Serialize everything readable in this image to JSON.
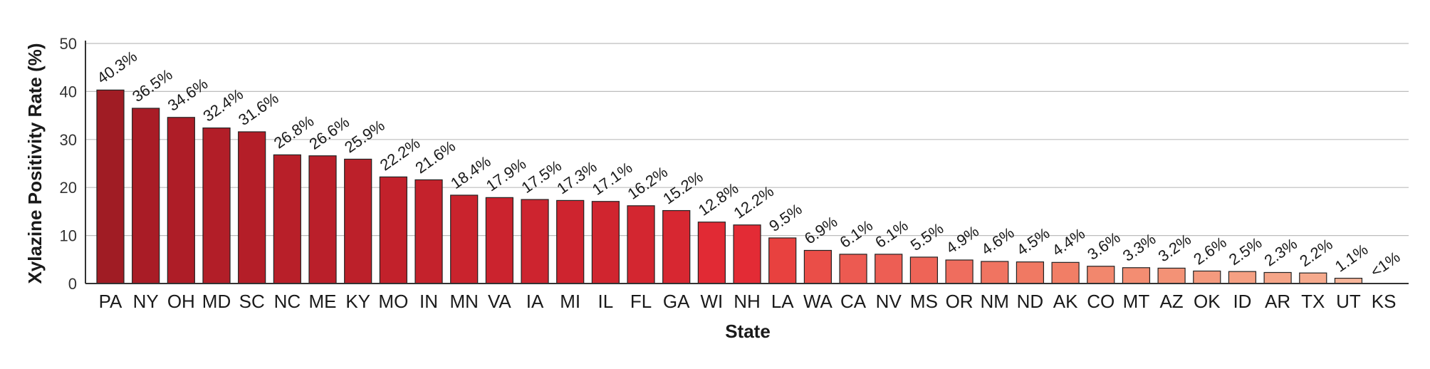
{
  "chart_data": {
    "type": "bar",
    "xlabel": "State",
    "ylabel": "Xylazine Positivity Rate (%)",
    "ylim": [
      0,
      50
    ],
    "yticks": [
      0,
      10,
      20,
      30,
      40,
      50
    ],
    "grid": true,
    "categories": [
      "PA",
      "NY",
      "OH",
      "MD",
      "SC",
      "NC",
      "ME",
      "KY",
      "MO",
      "IN",
      "MN",
      "VA",
      "IA",
      "MI",
      "IL",
      "FL",
      "GA",
      "WI",
      "NH",
      "LA",
      "WA",
      "CA",
      "NV",
      "MS",
      "OR",
      "NM",
      "ND",
      "AK",
      "CO",
      "MT",
      "AZ",
      "OK",
      "ID",
      "AR",
      "TX",
      "UT",
      "KS"
    ],
    "values": [
      40.3,
      36.5,
      34.6,
      32.4,
      31.6,
      26.8,
      26.6,
      25.9,
      22.2,
      21.6,
      18.4,
      17.9,
      17.5,
      17.3,
      17.1,
      16.2,
      15.2,
      12.8,
      12.2,
      9.5,
      6.9,
      6.1,
      6.1,
      5.5,
      4.9,
      4.6,
      4.5,
      4.4,
      3.6,
      3.3,
      3.2,
      2.6,
      2.5,
      2.3,
      2.2,
      1.1,
      0
    ],
    "labels": [
      "40.3%",
      "36.5%",
      "34.6%",
      "32.4%",
      "31.6%",
      "26.8%",
      "26.6%",
      "25.9%",
      "22.2%",
      "21.6%",
      "18.4%",
      "17.9%",
      "17.5%",
      "17.3%",
      "17.1%",
      "16.2%",
      "15.2%",
      "12.8%",
      "12.2%",
      "9.5%",
      "6.9%",
      "6.1%",
      "6.1%",
      "5.5%",
      "4.9%",
      "4.6%",
      "4.5%",
      "4.4%",
      "3.6%",
      "3.3%",
      "3.2%",
      "2.6%",
      "2.5%",
      "2.3%",
      "2.2%",
      "1.1%",
      "<1%"
    ],
    "colors": [
      "#a01c24",
      "#a91c26",
      "#ae1d27",
      "#b21e28",
      "#b41e28",
      "#b81f29",
      "#ba1f2a",
      "#bc202a",
      "#c2212b",
      "#c4222c",
      "#c9232d",
      "#cb232e",
      "#cd242f",
      "#ce242f",
      "#d0252f",
      "#d32630",
      "#d72731",
      "#e12a34",
      "#e32b35",
      "#e8413f",
      "#ea4e48",
      "#ec5a51",
      "#ed5e54",
      "#ee6457",
      "#ef6d5e",
      "#f07461",
      "#f07963",
      "#f17e66",
      "#f2876d",
      "#f38d72",
      "#f39276",
      "#f49a7e",
      "#f5a083",
      "#f5a588",
      "#f6aa8d",
      "#f7b59a",
      "#f8c0a8"
    ]
  }
}
